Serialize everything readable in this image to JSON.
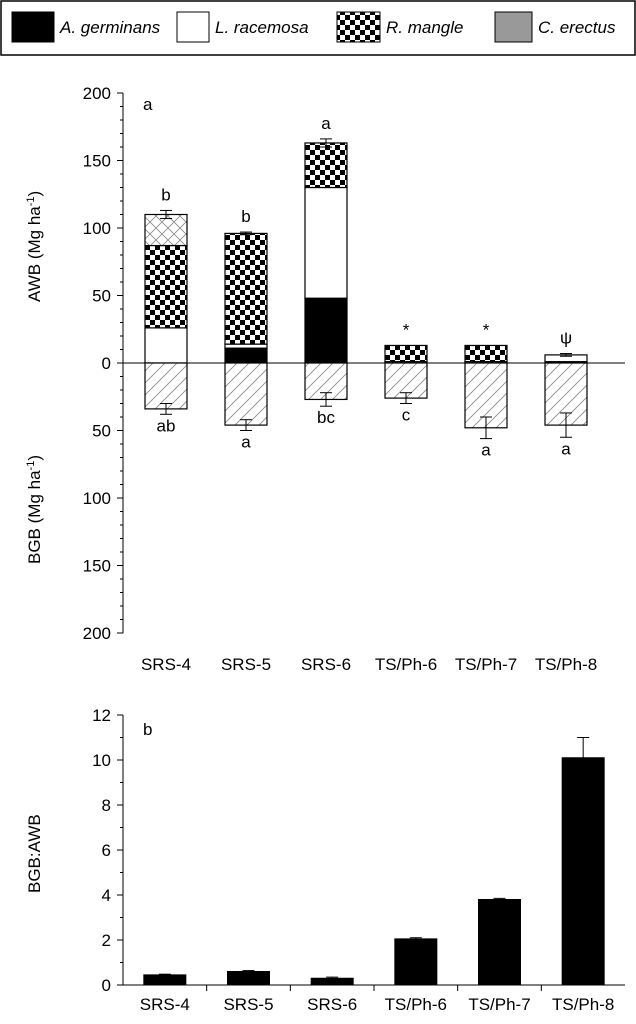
{
  "legend": {
    "items": [
      {
        "label": "A. germinans",
        "color": "#000000",
        "pattern": "solid"
      },
      {
        "label": "L. racemosa",
        "color": "#ffffff",
        "pattern": "solid"
      },
      {
        "label": "R. mangle",
        "color": "#000000",
        "pattern": "checker"
      },
      {
        "label": "C. erectus",
        "color": "#999999",
        "pattern": "solid"
      }
    ]
  },
  "chart_data": [
    {
      "type": "bar",
      "panel_label": "a",
      "categories": [
        "SRS-4",
        "SRS-5",
        "SRS-6",
        "TS/Ph-6",
        "TS/Ph-7",
        "TS/Ph-8"
      ],
      "ylabel_upper": "AWB (Mg ha",
      "ylabel_upper_sup": "-1",
      "ylabel_upper_close": ")",
      "ylabel_lower": "BGB (Mg ha",
      "ylabel_lower_sup": "-1",
      "ylabel_lower_close": ")",
      "ylim": [
        -200,
        200
      ],
      "yticks": [
        200,
        150,
        100,
        50,
        0,
        50,
        100,
        150,
        200
      ],
      "awb_series": [
        {
          "name": "A. germinans",
          "values": [
            0,
            11,
            48,
            0,
            0,
            1
          ]
        },
        {
          "name": "L. racemosa",
          "values": [
            26,
            3,
            82,
            1,
            1,
            5
          ]
        },
        {
          "name": "R. mangle",
          "values": [
            61,
            82,
            33,
            12,
            12,
            0
          ]
        },
        {
          "name": "C. erectus",
          "values": [
            23,
            0,
            0,
            0,
            0,
            0
          ]
        }
      ],
      "awb_total": [
        110,
        96,
        163,
        13,
        13,
        6
      ],
      "awb_error": [
        3,
        1,
        3,
        0,
        0,
        1
      ],
      "awb_letters": [
        "b",
        "b",
        "a",
        "*",
        "*",
        "ψ"
      ],
      "bgb_values": [
        34,
        46,
        27,
        26,
        48,
        46
      ],
      "bgb_error": [
        4,
        4,
        5,
        4,
        8,
        9
      ],
      "bgb_letters": [
        "ab",
        "a",
        "bc",
        "c",
        "a",
        "a"
      ]
    },
    {
      "type": "bar",
      "panel_label": "b",
      "categories": [
        "SRS-4",
        "SRS-5",
        "SRS-6",
        "TS/Ph-6",
        "TS/Ph-7",
        "TS/Ph-8"
      ],
      "ylabel": "BGB:AWB",
      "ylim": [
        0,
        12
      ],
      "yticks": [
        0,
        2,
        4,
        6,
        8,
        10,
        12
      ],
      "values": [
        0.45,
        0.6,
        0.3,
        2.05,
        3.8,
        10.1
      ],
      "errors": [
        0.03,
        0.04,
        0.05,
        0.05,
        0.05,
        0.9
      ]
    }
  ]
}
